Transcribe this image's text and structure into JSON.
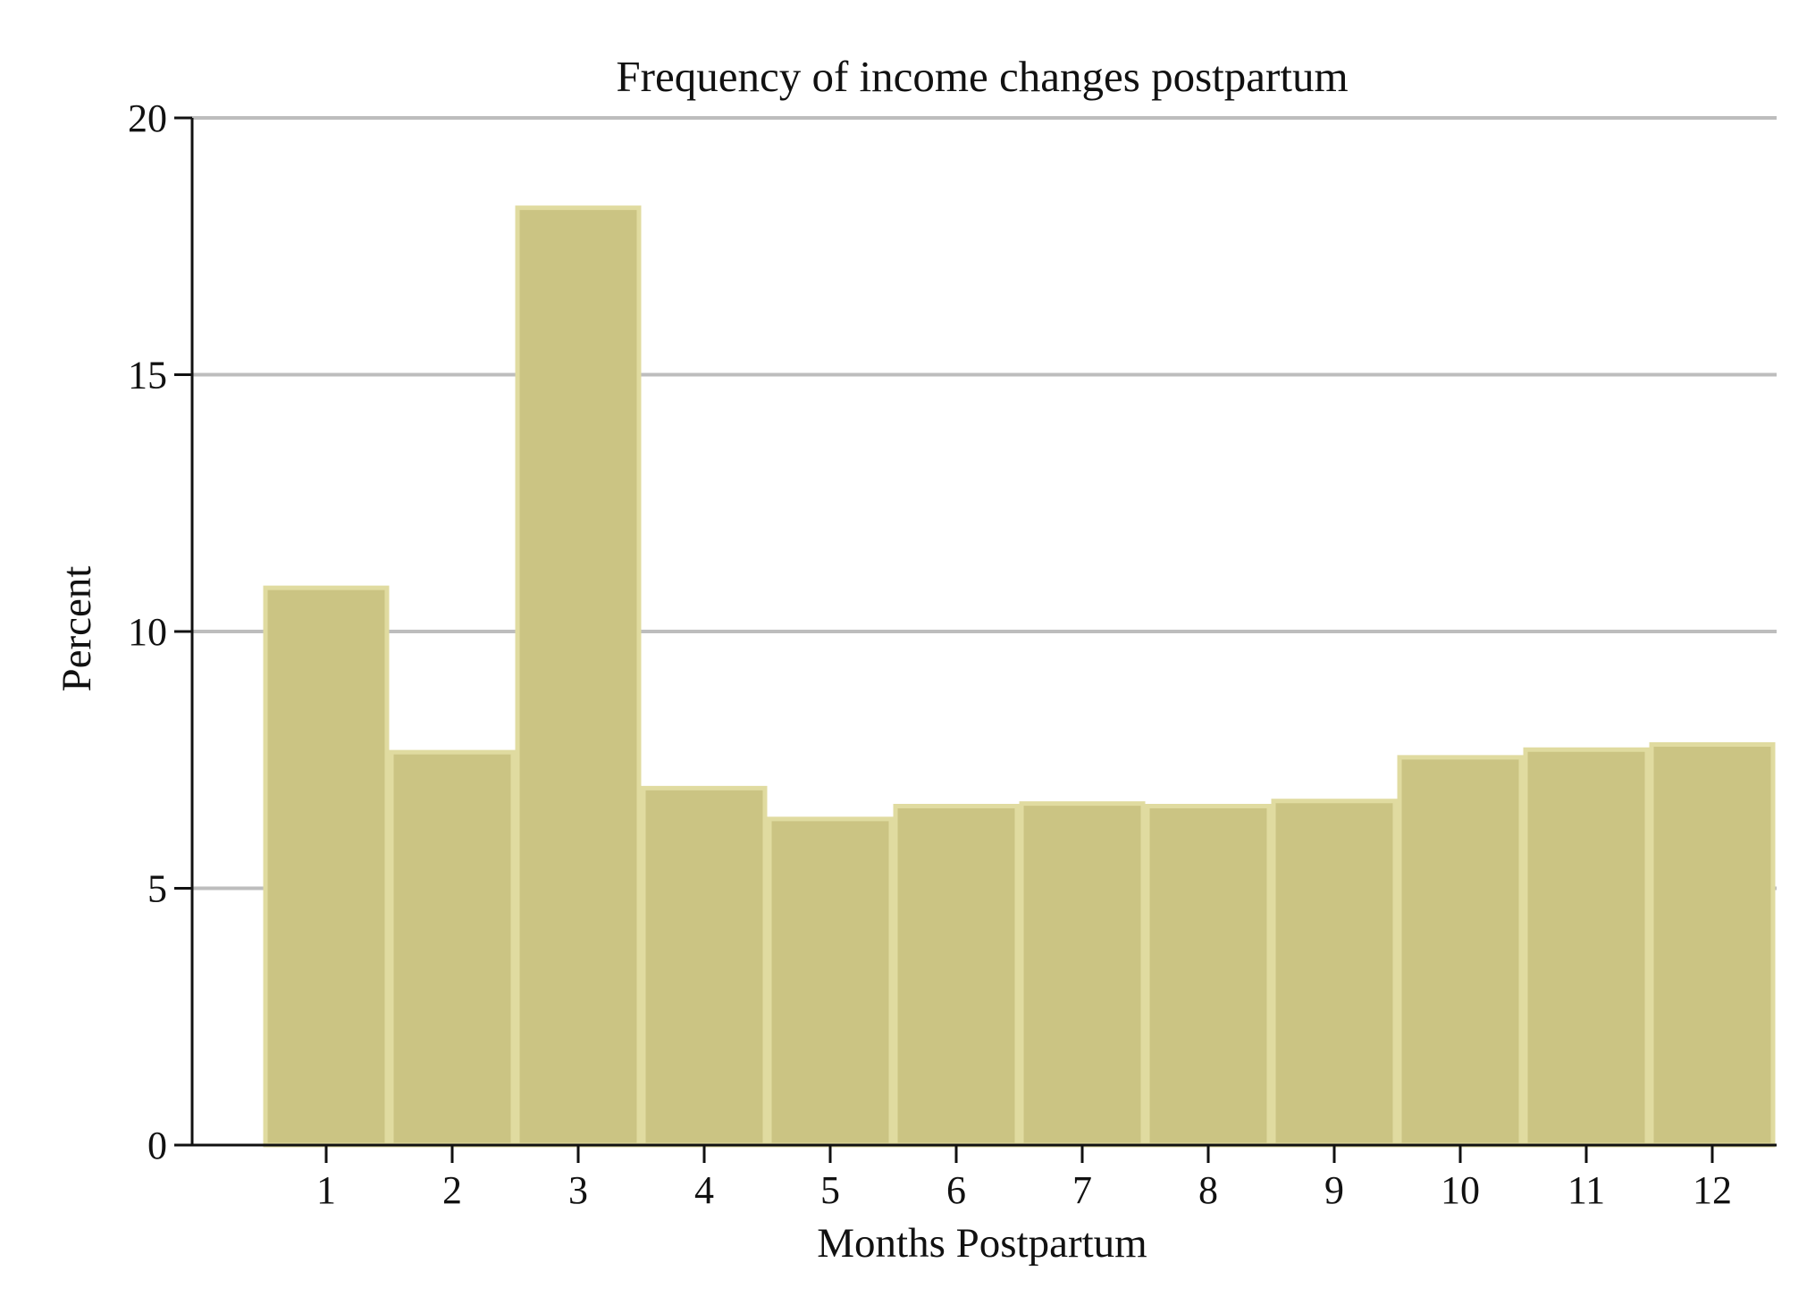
{
  "chart_data": {
    "type": "bar",
    "title": "Frequency of income changes postpartum",
    "xlabel": "Months Postpartum",
    "ylabel": "Percent",
    "categories": [
      "1",
      "2",
      "3",
      "4",
      "5",
      "6",
      "7",
      "8",
      "9",
      "10",
      "11",
      "12"
    ],
    "values": [
      10.85,
      7.65,
      18.25,
      6.95,
      6.35,
      6.6,
      6.65,
      6.6,
      6.7,
      7.55,
      7.7,
      7.8
    ],
    "ylim": [
      0,
      20
    ],
    "yticks": [
      "0",
      "5",
      "10",
      "15",
      "20"
    ],
    "grid": true,
    "bar_color": "#cbc483",
    "bar_edge_color": "#e0dba0",
    "grid_color": "#bdbdbd"
  }
}
